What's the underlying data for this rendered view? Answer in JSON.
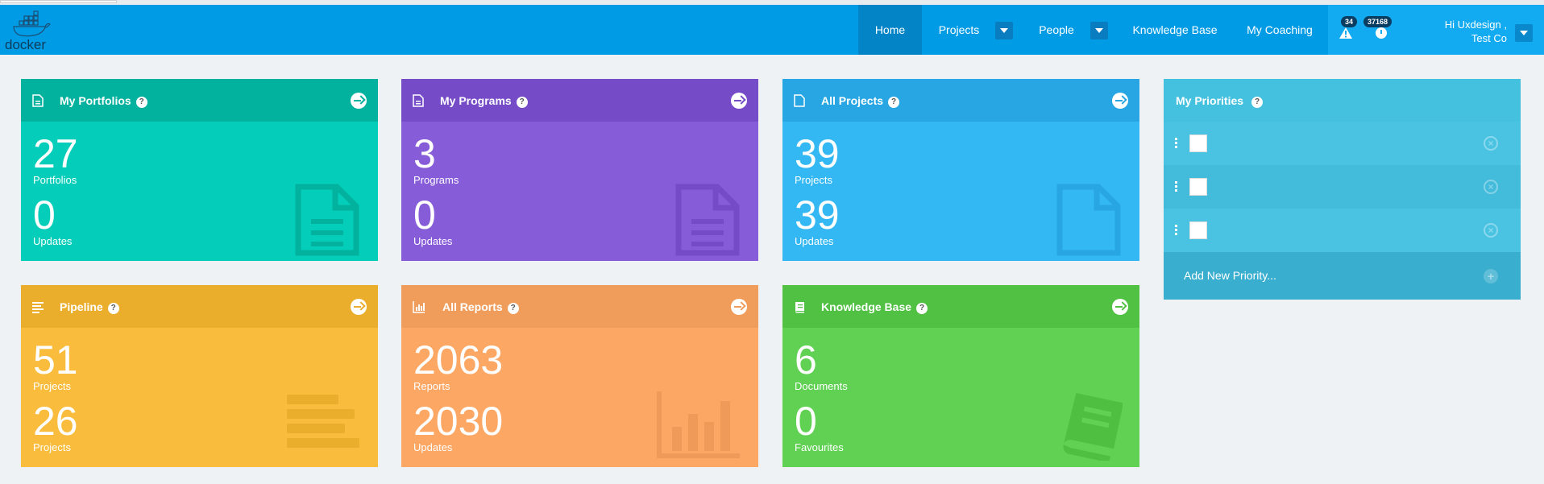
{
  "navbar": {
    "logo_text": "docker",
    "items": [
      {
        "label": "Home"
      },
      {
        "label": "Projects"
      },
      {
        "label": "People"
      },
      {
        "label": "Knowledge Base"
      },
      {
        "label": "My Coaching"
      }
    ],
    "alerts_count": "34",
    "notifications_count": "37168",
    "user_line1": "Hi Uxdesign ,",
    "user_line2": "Test Co"
  },
  "cards": {
    "portfolios": {
      "title": "My Portfolios",
      "num1": "27",
      "lbl1": "Portfolios",
      "num2": "0",
      "lbl2": "Updates",
      "color": "#04ceb9"
    },
    "programs": {
      "title": "My Programs",
      "num1": "3",
      "lbl1": "Programs",
      "num2": "0",
      "lbl2": "Updates",
      "color": "#875cd9"
    },
    "projects": {
      "title": "All Projects",
      "num1": "39",
      "lbl1": "Projects",
      "num2": "39",
      "lbl2": "Updates",
      "color": "#33b8f3"
    },
    "pipeline": {
      "title": "Pipeline",
      "num1": "51",
      "lbl1": "Projects",
      "num2": "26",
      "lbl2": "Projects",
      "color": "#f9bc3c"
    },
    "reports": {
      "title": "All Reports",
      "num1": "2063",
      "lbl1": "Reports",
      "num2": "2030",
      "lbl2": "Updates",
      "color": "#fda764"
    },
    "knowledge": {
      "title": "Knowledge Base",
      "num1": "6",
      "lbl1": "Documents",
      "num2": "0",
      "lbl2": "Favourites",
      "color": "#60d153"
    }
  },
  "priorities": {
    "title": "My Priorities",
    "add_label": "Add New Priority..."
  },
  "help_glyph": "?"
}
